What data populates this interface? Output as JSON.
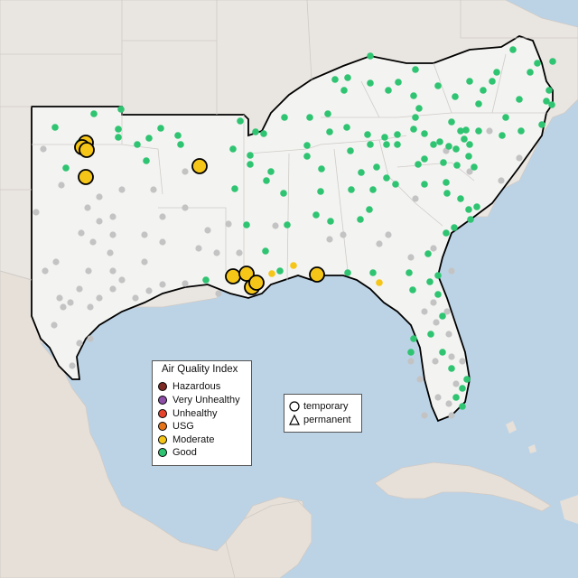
{
  "map": {
    "colors": {
      "water": "#bcd3e6",
      "land_focus": "#f3f3f1",
      "land_outside": "#e7e2dd",
      "grey_site": "#c3c3c3",
      "outline": "#000000"
    }
  },
  "legend_aqi": {
    "title": "Air Quality Index",
    "items": [
      {
        "label": "Hazardous",
        "color": "#7e2a25"
      },
      {
        "label": "Very Unhealthy",
        "color": "#8e4fa8"
      },
      {
        "label": "Unhealthy",
        "color": "#e6432c"
      },
      {
        "label": "USG",
        "color": "#e67418"
      },
      {
        "label": "Moderate",
        "color": "#f5c518"
      },
      {
        "label": "Good",
        "color": "#2ec471"
      }
    ]
  },
  "legend_site": {
    "items": [
      {
        "label": "temporary",
        "icon": "circle-outline-icon"
      },
      {
        "label": "permanent",
        "icon": "triangle-outline-icon"
      }
    ]
  }
}
